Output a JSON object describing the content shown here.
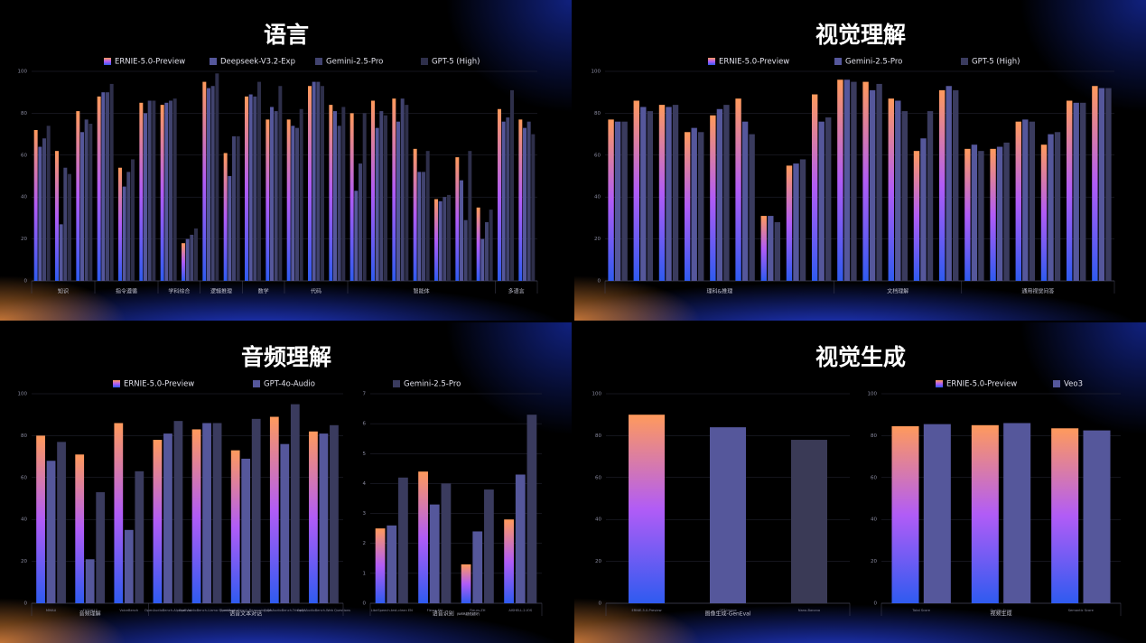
{
  "chart_data": [
    {
      "type": "bar",
      "title": "语言",
      "series": [
        {
          "name": "ERNIE-5.0-Preview",
          "color": [
            "#ff9a5c",
            "#b15cf6",
            "#2f5bf0"
          ]
        },
        {
          "name": "Deepseek-V3.2-Exp",
          "color": [
            "#55579b"
          ]
        },
        {
          "name": "Gemini-2.5-Pro",
          "color": [
            "#41436f"
          ]
        },
        {
          "name": "GPT-5 (High)",
          "color": [
            "#2e2f4a"
          ]
        }
      ],
      "panels": [
        {
          "categories": [
            null,
            null,
            null,
            null,
            null,
            null,
            null,
            null,
            null,
            null,
            null,
            null,
            null,
            null,
            null,
            null,
            null,
            null,
            null,
            null,
            null,
            null,
            null,
            null
          ],
          "groups": [
            "知识",
            "知识",
            "知识",
            "指令遵循",
            "指令遵循",
            "指令遵循",
            "学科综合",
            "学科综合",
            "逻辑推理",
            "逻辑推理",
            "数学",
            "数学",
            "代码",
            "代码",
            "代码",
            "智能体",
            "智能体",
            "智能体",
            "智能体",
            "智能体",
            "智能体",
            "智能体",
            "多语言",
            "多语言"
          ],
          "ylim": [
            0,
            100
          ],
          "yticks": [
            0,
            20,
            40,
            60,
            80,
            100
          ],
          "series": [
            {
              "values": [
                72,
                62,
                81,
                88,
                54,
                85,
                84,
                18,
                95,
                61,
                88,
                77,
                77,
                93,
                84,
                80,
                86,
                87,
                63,
                39,
                59,
                35,
                82,
                77
              ]
            },
            {
              "values": [
                64,
                27,
                71,
                90,
                45,
                80,
                85,
                20,
                92,
                50,
                89,
                83,
                74,
                95,
                81,
                43,
                73,
                76,
                52,
                38,
                48,
                20,
                76,
                73
              ]
            },
            {
              "values": [
                68,
                54,
                77,
                90,
                52,
                86,
                86,
                22,
                93,
                69,
                88,
                81,
                73,
                95,
                74,
                56,
                81,
                87,
                52,
                40,
                29,
                28,
                78,
                76
              ]
            },
            {
              "values": [
                74,
                51,
                75,
                94,
                58,
                86,
                87,
                25,
                99,
                69,
                95,
                93,
                82,
                93,
                83,
                80,
                79,
                84,
                62,
                41,
                62,
                34,
                91,
                70
              ]
            }
          ]
        }
      ]
    },
    {
      "type": "bar",
      "title": "视觉理解",
      "series": [
        {
          "name": "ERNIE-5.0-Preview",
          "color": [
            "#ff9a5c",
            "#b15cf6",
            "#2f5bf0"
          ]
        },
        {
          "name": "Gemini-2.5-Pro",
          "color": [
            "#55579b"
          ]
        },
        {
          "name": "GPT-5 (High)",
          "color": [
            "#3a3b5e"
          ]
        }
      ],
      "panels": [
        {
          "categories": [
            null,
            null,
            null,
            null,
            null,
            null,
            null,
            null,
            null,
            null,
            null,
            null,
            null,
            null,
            null,
            null,
            null,
            null,
            null,
            null
          ],
          "groups": [
            "理科&推理",
            "理科&推理",
            "理科&推理",
            "理科&推理",
            "理科&推理",
            "理科&推理",
            "理科&推理",
            "理科&推理",
            "理科&推理",
            "文档理解",
            "文档理解",
            "文档理解",
            "文档理解",
            "文档理解",
            "通用视觉问答",
            "通用视觉问答",
            "通用视觉问答",
            "通用视觉问答",
            "通用视觉问答",
            "通用视觉问答"
          ],
          "ylim": [
            0,
            100
          ],
          "yticks": [
            0,
            20,
            40,
            60,
            80,
            100
          ],
          "series": [
            {
              "values": [
                77,
                86,
                84,
                71,
                79,
                87,
                31,
                55,
                89,
                96,
                95,
                87,
                62,
                91,
                63,
                63,
                76,
                65,
                86,
                93
              ]
            },
            {
              "values": [
                76,
                83,
                83,
                73,
                82,
                76,
                31,
                56,
                76,
                96,
                91,
                86,
                68,
                93,
                65,
                64,
                77,
                70,
                85,
                92
              ]
            },
            {
              "values": [
                76,
                81,
                84,
                71,
                84,
                70,
                28,
                58,
                78,
                95,
                94,
                81,
                81,
                91,
                62,
                66,
                76,
                71,
                85,
                92
              ]
            }
          ]
        }
      ]
    },
    {
      "type": "bar",
      "title": "音频理解",
      "series": [
        {
          "name": "ERNIE-5.0-Preview",
          "color": [
            "#ff9a5c",
            "#b15cf6",
            "#2f5bf0"
          ]
        },
        {
          "name": "GPT-4o-Audio",
          "color": [
            "#55579b"
          ]
        },
        {
          "name": "Gemini-2.5-Pro",
          "color": [
            "#3a3b5e"
          ]
        }
      ],
      "panels": [
        {
          "categories": [
            "MMAU",
            "TUT2017",
            "VoiceBench",
            "OpenAudioBench-AlpacaEval",
            "OpenAudioBench-Llama Questions",
            "OpenAudioBench-Reasoning QA",
            "OpenAudioBench-TriviaQA",
            "OpenAudioBench-Web Questions"
          ],
          "groups": [
            "音频理解",
            "音频理解",
            "音频理解",
            "语音文本对话",
            "语音文本对话",
            "语音文本对话",
            "语音文本对话",
            "语音文本对话"
          ],
          "ylim": [
            0,
            100
          ],
          "yticks": [
            0,
            20,
            40,
            60,
            80,
            100
          ],
          "series": [
            {
              "values": [
                80,
                71,
                86,
                78,
                83,
                73,
                89,
                82
              ]
            },
            {
              "values": [
                68,
                21,
                35,
                81,
                86,
                69,
                76,
                81
              ]
            },
            {
              "values": [
                77,
                53,
                63,
                87,
                86,
                88,
                95,
                85
              ]
            }
          ]
        },
        {
          "categories": [
            "LibriSpeech-test-clean EN",
            "Fleurs-EN",
            "Fleurs-ZH",
            "AISHELL-2-IOS"
          ],
          "groups": [
            "语音识别",
            "语音识别",
            "语音识别",
            "语音识别"
          ],
          "note": "(WER越低越好)",
          "ylim": [
            0,
            7
          ],
          "yticks": [
            0,
            1,
            2,
            3,
            4,
            5,
            6,
            7
          ],
          "series": [
            {
              "values": [
                2.5,
                4.4,
                1.3,
                2.8
              ]
            },
            {
              "values": [
                2.6,
                3.3,
                2.4,
                4.3
              ]
            },
            {
              "values": [
                4.2,
                4.0,
                3.8,
                6.3
              ]
            }
          ]
        }
      ]
    },
    {
      "type": "bar",
      "title": "视觉生成",
      "series": [
        {
          "name": "ERNIE-5.0-Preview",
          "color": [
            "#ff9a5c",
            "#b15cf6",
            "#2f5bf0"
          ]
        },
        {
          "name": "Veo3",
          "color": [
            "#55579b"
          ]
        }
      ],
      "panels": [
        {
          "categories": [
            "ERNIE-5.0-Preview",
            "GPT-Image",
            "Nano-Banana"
          ],
          "groups": [
            "图像生成-GenEval",
            "图像生成-GenEval",
            "图像生成-GenEval"
          ],
          "ylim": [
            0,
            100
          ],
          "yticks": [
            0,
            20,
            40,
            60,
            80,
            100
          ],
          "bar_colors": [
            [
              "#ff9a5c",
              "#b15cf6",
              "#2f5bf0"
            ],
            [
              "#55579b"
            ],
            [
              "#3a3a56"
            ]
          ],
          "series": [
            {
              "values": [
                90,
                84,
                78
              ]
            }
          ]
        },
        {
          "categories": [
            "Total Score",
            "Quality Score",
            "Semantic Score"
          ],
          "groups": [
            "视频生成",
            "视频生成",
            "视频生成"
          ],
          "ylim": [
            0,
            100
          ],
          "yticks": [
            0,
            20,
            40,
            60,
            80,
            100
          ],
          "series": [
            {
              "values": [
                84.5,
                85,
                83.5
              ]
            },
            {
              "values": [
                85.5,
                86,
                82.5
              ]
            }
          ]
        }
      ]
    }
  ]
}
